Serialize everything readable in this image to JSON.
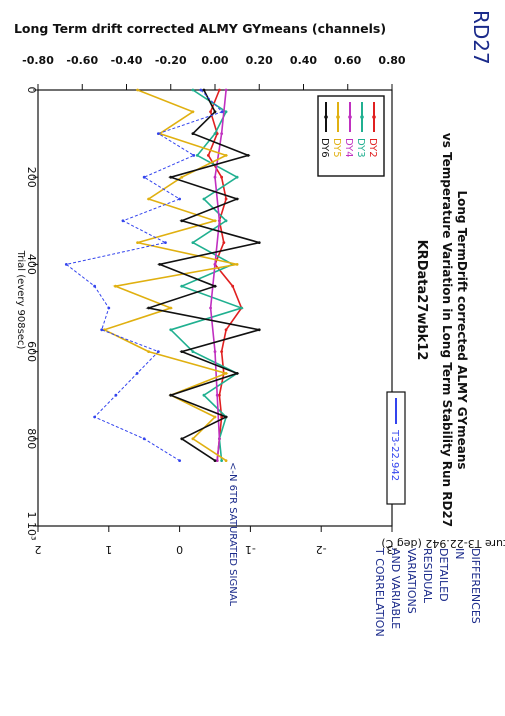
{
  "chart_data": {
    "type": "line",
    "title": "Long TermDrift corrected ALMY GYmeans",
    "subtitle": "vs Temperature Variation in Long Term Stability Run RD27",
    "run_label": "KRData27wbk12",
    "top_axis_title": "Long Term drift corrected ALMY GYmeans (channels)",
    "top_axis_ticks": [
      "-0.80",
      "-0.60",
      "-0.40",
      "-0.20",
      "0.00",
      "0.20",
      "0.40",
      "0.60",
      "0.80"
    ],
    "top_axis_range": [
      -0.8,
      0.8
    ],
    "bottom_axis_title": "Temperature T3-22.942 (deg C)",
    "bottom_axis_ticks": [
      "-3",
      "-2",
      "-1",
      "0",
      "1",
      "2"
    ],
    "bottom_axis_range": [
      -3,
      2
    ],
    "left_axis_title": "Trial (every 908sec)",
    "left_axis_ticks": [
      "0",
      "200",
      "400",
      "600",
      "800",
      "1 10³"
    ],
    "left_axis_range": [
      0,
      1000
    ],
    "legend_position": "top-right",
    "series": [
      {
        "name": "DY2",
        "color": "#e02020",
        "axis": "top",
        "x": [
          0,
          50,
          100,
          150,
          200,
          250,
          300,
          350,
          400,
          450,
          500,
          550,
          600,
          650,
          700,
          750,
          800,
          850
        ],
        "y": [
          0.02,
          -0.02,
          0.01,
          -0.03,
          0.03,
          0.05,
          0.02,
          0.04,
          0.0,
          0.08,
          0.12,
          0.05,
          0.03,
          0.04,
          0.02,
          0.03,
          0.02,
          0.01
        ]
      },
      {
        "name": "DY3",
        "color": "#20b090",
        "axis": "top",
        "x": [
          0,
          50,
          100,
          150,
          200,
          250,
          300,
          350,
          400,
          450,
          500,
          550,
          600,
          650,
          700,
          750,
          800,
          850
        ],
        "y": [
          -0.1,
          0.05,
          0.0,
          -0.08,
          0.1,
          -0.05,
          0.05,
          -0.1,
          0.08,
          -0.15,
          0.12,
          -0.2,
          -0.1,
          0.1,
          -0.05,
          0.05,
          0.02,
          0.03
        ]
      },
      {
        "name": "DY4",
        "color": "#c030c0",
        "axis": "top",
        "x": [
          0,
          100,
          200,
          300,
          400,
          500,
          600,
          700,
          800,
          850
        ],
        "y": [
          0.05,
          0.03,
          0.0,
          0.02,
          0.0,
          -0.02,
          0.0,
          0.01,
          0.02,
          0.01
        ]
      },
      {
        "name": "DY5",
        "color": "#e0b010",
        "axis": "top",
        "x": [
          0,
          50,
          100,
          150,
          200,
          250,
          300,
          350,
          400,
          450,
          500,
          550,
          600,
          650,
          700,
          750,
          800,
          850
        ],
        "y": [
          -0.35,
          -0.1,
          -0.25,
          0.05,
          -0.15,
          -0.3,
          0.0,
          -0.35,
          0.1,
          -0.45,
          -0.2,
          -0.5,
          -0.3,
          0.05,
          -0.2,
          0.0,
          -0.1,
          0.05
        ]
      },
      {
        "name": "DY6",
        "color": "#111111",
        "axis": "top",
        "x": [
          0,
          50,
          100,
          150,
          200,
          250,
          300,
          350,
          400,
          450,
          500,
          550,
          600,
          650,
          700,
          750,
          800,
          850
        ],
        "y": [
          -0.05,
          0.0,
          -0.1,
          0.15,
          -0.2,
          0.1,
          -0.15,
          0.2,
          -0.25,
          0.0,
          -0.3,
          0.2,
          -0.15,
          0.1,
          -0.2,
          0.05,
          -0.15,
          0.0
        ]
      },
      {
        "name": "T3-22.942",
        "color": "#3344ee",
        "axis": "bottom",
        "x": [
          0,
          50,
          100,
          150,
          200,
          250,
          300,
          350,
          400,
          450,
          500,
          550,
          600,
          650,
          700,
          750,
          800,
          850
        ],
        "y": [
          -0.3,
          -0.6,
          0.3,
          -0.2,
          0.5,
          0.0,
          0.8,
          0.2,
          1.6,
          1.2,
          1.0,
          1.1,
          0.3,
          0.6,
          0.9,
          1.2,
          0.5,
          0.0
        ]
      }
    ]
  },
  "annotations": {
    "page_mark": "RD27",
    "signal_note": "<-N 6TR SATURATED SIGNAL",
    "margin_note": [
      "DIFFERENCES",
      "IN",
      "DETAILED",
      "RESIDUAL",
      "VARIATIONS",
      "AND VARIABLE",
      "T CORRELATION"
    ]
  }
}
